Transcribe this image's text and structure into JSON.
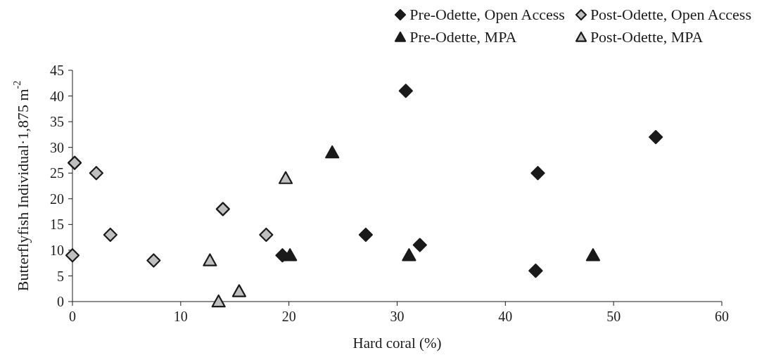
{
  "chart_data": {
    "type": "scatter",
    "xlabel": "Hard coral (%)",
    "ylabel": "Butterflyfish Individual·1,875 m$^{-2}$",
    "xlim": [
      0,
      60
    ],
    "xticks": [
      0,
      10,
      20,
      30,
      40,
      50,
      60
    ],
    "ylim": [
      0,
      45
    ],
    "yticks": [
      0,
      5,
      10,
      15,
      20,
      25,
      30,
      35,
      40,
      45
    ],
    "grid": false,
    "legend": "top right",
    "series": [
      {
        "name": "Pre-Odette, Open Access",
        "color": "#1a1a1a",
        "marker": "diamond",
        "x": [
          30.8,
          53.9,
          43,
          27.1,
          32.1,
          19.4,
          42.8
        ],
        "values": [
          41,
          32,
          25,
          13,
          11,
          9,
          6
        ]
      },
      {
        "name": "Post-Odette, Open Access",
        "color": "#bfbfbf",
        "marker": "diamond",
        "x": [
          0.2,
          2.2,
          3.5,
          0,
          7.5,
          13.9,
          17.9
        ],
        "values": [
          27,
          25,
          13,
          9,
          8,
          18,
          13
        ]
      },
      {
        "name": "Pre-Odette, MPA",
        "color": "#1a1a1a",
        "marker": "triangle",
        "x": [
          24,
          20.1,
          31.1,
          48.1
        ],
        "values": [
          29,
          9,
          9,
          9
        ]
      },
      {
        "name": "Post-Odette, MPA",
        "color": "#bfbfbf",
        "marker": "triangle",
        "x": [
          19.7,
          12.7,
          13.5,
          15.4
        ],
        "values": [
          24,
          8,
          0,
          2
        ]
      }
    ]
  }
}
